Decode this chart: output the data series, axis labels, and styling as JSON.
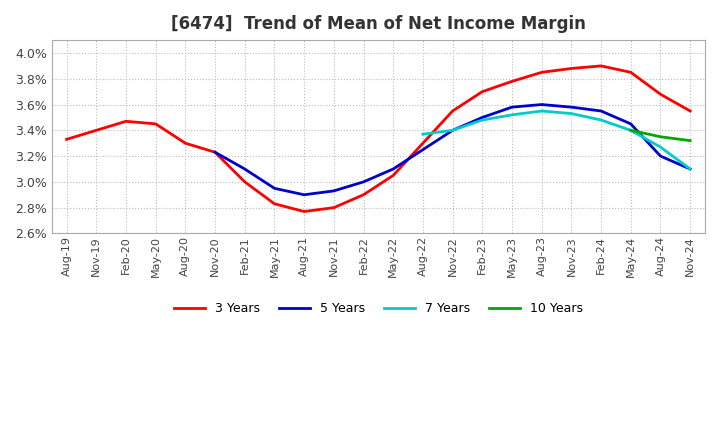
{
  "title": "[6474]  Trend of Mean of Net Income Margin",
  "ylim": [
    0.026,
    0.041
  ],
  "yticks": [
    0.026,
    0.028,
    0.03,
    0.032,
    0.034,
    0.036,
    0.038,
    0.04
  ],
  "background_color": "#ffffff",
  "grid_color": "#bbbbbb",
  "series": {
    "3 Years": {
      "color": "#ff0000",
      "indices": [
        0,
        1,
        2,
        3,
        4,
        5,
        6,
        7,
        8,
        9,
        10,
        11,
        12,
        13,
        14,
        15,
        16,
        17,
        18,
        19,
        20,
        21
      ],
      "values": [
        0.0333,
        0.034,
        0.0347,
        0.0345,
        0.033,
        0.0323,
        0.03,
        0.0283,
        0.0277,
        0.028,
        0.029,
        0.0305,
        0.033,
        0.0355,
        0.037,
        0.0378,
        0.0385,
        0.0388,
        0.039,
        0.0385,
        0.0368,
        0.0355
      ]
    },
    "5 Years": {
      "color": "#0000cc",
      "indices": [
        5,
        6,
        7,
        8,
        9,
        10,
        11,
        12,
        13,
        14,
        15,
        16,
        17,
        18,
        19,
        20,
        21
      ],
      "values": [
        0.0323,
        0.031,
        0.0295,
        0.029,
        0.0293,
        0.03,
        0.031,
        0.0325,
        0.034,
        0.035,
        0.0358,
        0.036,
        0.0358,
        0.0355,
        0.0345,
        0.032,
        0.031
      ]
    },
    "7 Years": {
      "color": "#00cccc",
      "indices": [
        12,
        13,
        14,
        15,
        16,
        17,
        18,
        19,
        20,
        21
      ],
      "values": [
        0.0337,
        0.034,
        0.0348,
        0.0352,
        0.0355,
        0.0353,
        0.0348,
        0.034,
        0.0327,
        0.031
      ]
    },
    "10 Years": {
      "color": "#00aa00",
      "indices": [
        19,
        20,
        21
      ],
      "values": [
        0.034,
        0.0335,
        0.0332
      ]
    }
  },
  "xtick_labels": [
    "Aug-19",
    "Nov-19",
    "Feb-20",
    "May-20",
    "Aug-20",
    "Nov-20",
    "Feb-21",
    "May-21",
    "Aug-21",
    "Nov-21",
    "Feb-22",
    "May-22",
    "Aug-22",
    "Nov-22",
    "Feb-23",
    "May-23",
    "Aug-23",
    "Nov-23",
    "Feb-24",
    "May-24",
    "Aug-24",
    "Nov-24"
  ],
  "legend_entries": [
    "3 Years",
    "5 Years",
    "7 Years",
    "10 Years"
  ],
  "legend_colors": [
    "#ff0000",
    "#0000cc",
    "#00cccc",
    "#00aa00"
  ]
}
